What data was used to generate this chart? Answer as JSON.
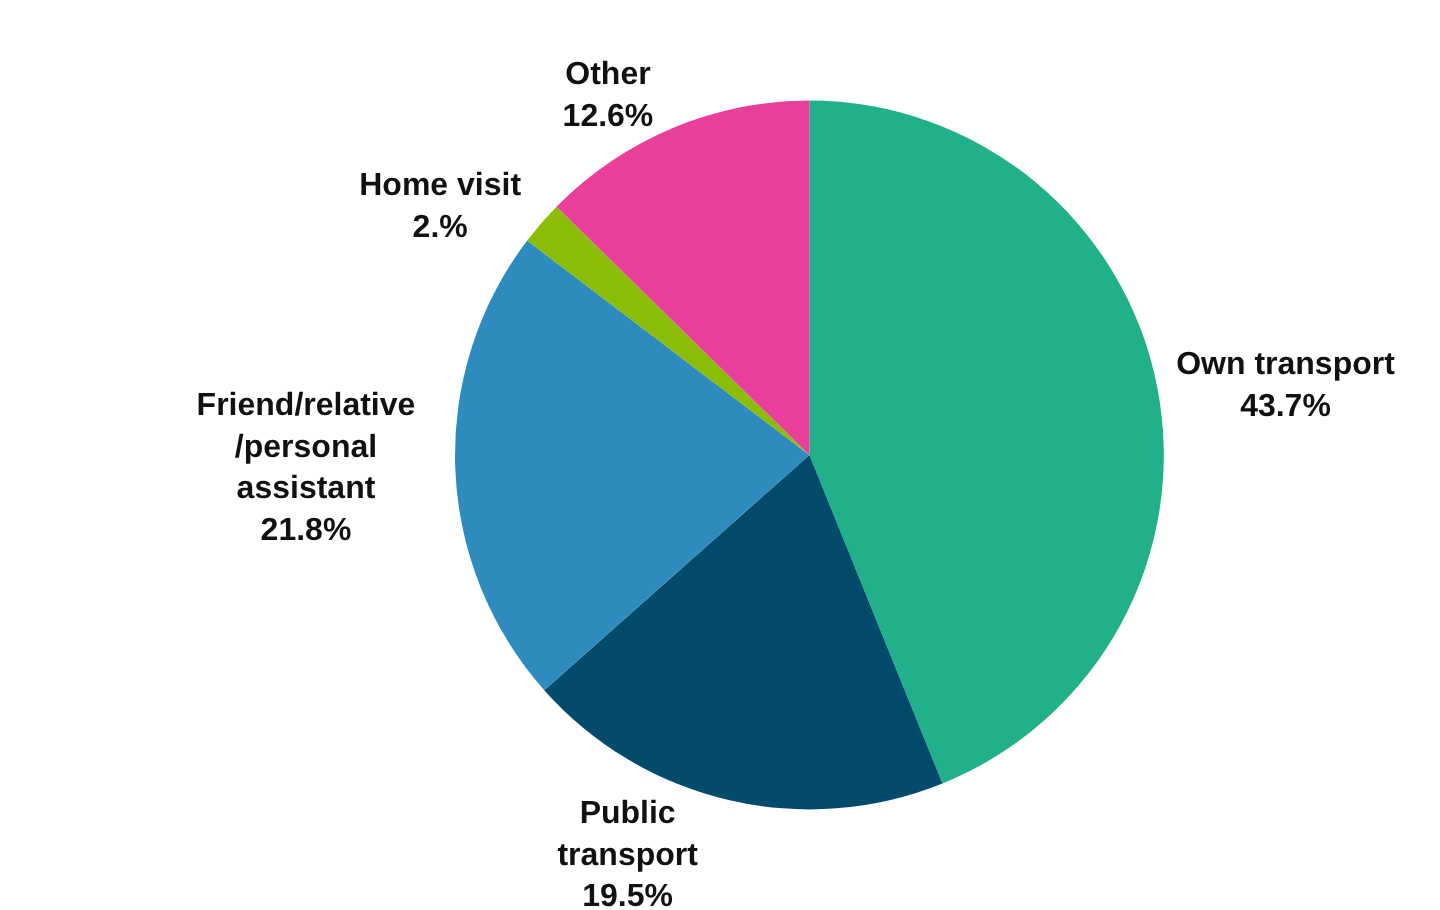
{
  "chart_data": {
    "type": "pie",
    "categories": [
      "Own transport",
      "Public transport",
      "Friend/relative/personal assistant",
      "Home visit",
      "Other"
    ],
    "values": [
      43.7,
      19.5,
      21.8,
      2,
      12.6
    ],
    "value_labels": [
      "43.7%",
      "19.5%",
      "21.8%",
      "2.%",
      "12.6%"
    ],
    "colors": [
      "#20b08a",
      "#034b6b",
      "#2e8bbd",
      "#8bbd06",
      "#e8409a"
    ],
    "legend": false
  }
}
